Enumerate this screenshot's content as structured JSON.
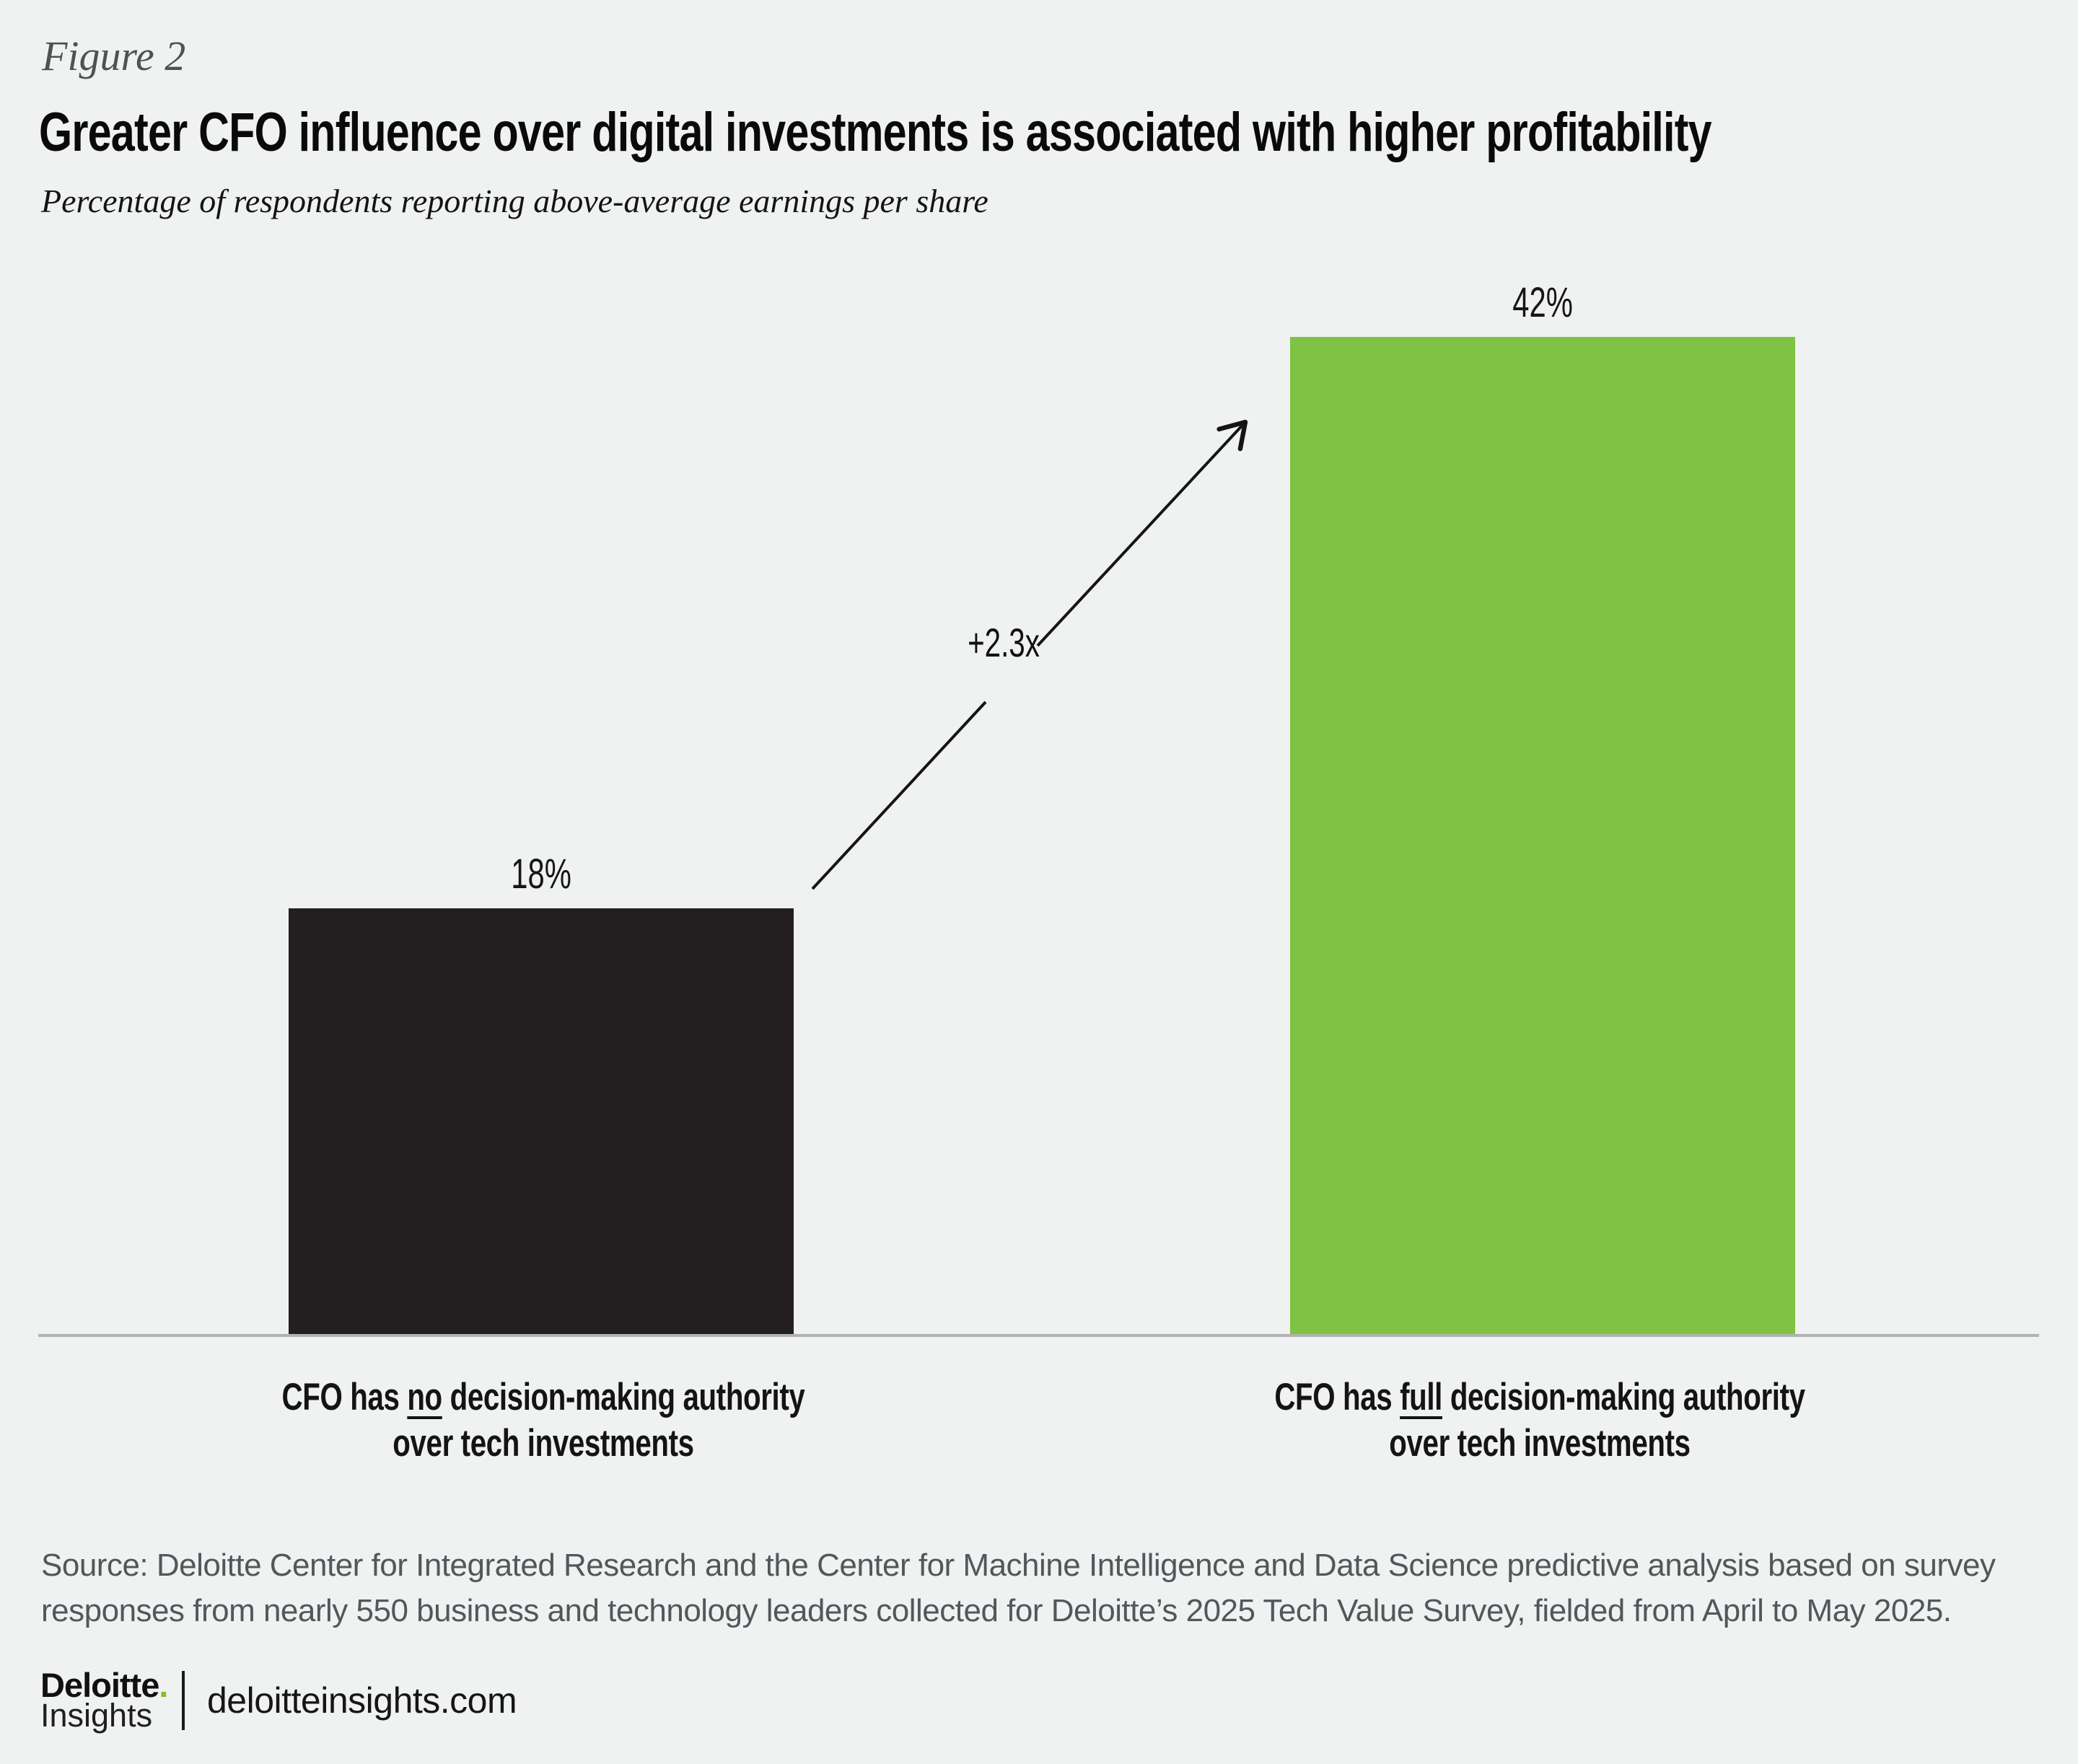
{
  "figure_label": "Figure 2",
  "title": "Greater CFO influence over digital investments is associated with higher profitability",
  "subtitle": "Percentage of respondents reporting above-average earnings per share",
  "chart_data": {
    "type": "bar",
    "categories": [
      "CFO has no decision-making authority over tech investments",
      "CFO has full decision-making authority over tech investments"
    ],
    "values": [
      18,
      42
    ],
    "value_labels": [
      "18%",
      "42%"
    ],
    "annotation": "+2.3x",
    "ylim": [
      0,
      45
    ],
    "grid": false,
    "legend": false,
    "bar_colors": [
      "#231F20",
      "#80C243"
    ],
    "background": "#F0F1F1"
  },
  "category_labels": {
    "left": {
      "pre": "CFO has ",
      "emphasis": "no",
      "post": " decision-making authority",
      "line2": "over tech investments"
    },
    "right": {
      "pre": "CFO has ",
      "emphasis": "full",
      "post": " decision-making authority",
      "line2": "over tech investments"
    }
  },
  "source": {
    "line1": "Source: Deloitte Center for Integrated Research and the Center for Machine Intelligence and Data Science predictive analysis based on survey",
    "line2": "responses from nearly 550 business and technology leaders collected for Deloitte’s 2025 Tech Value Survey, fielded from April to May 2025."
  },
  "footer": {
    "brand": "Deloitte",
    "brand_dot": ".",
    "brand_sub": "Insights",
    "site": "deloitteinsights.com"
  },
  "colors": {
    "accent_green": "#80C243",
    "bar_black": "#231F20",
    "logo_green_dot": "#86BC25",
    "source_text_gray": "#54565B",
    "baseline_gray": "#B1B2B3"
  }
}
